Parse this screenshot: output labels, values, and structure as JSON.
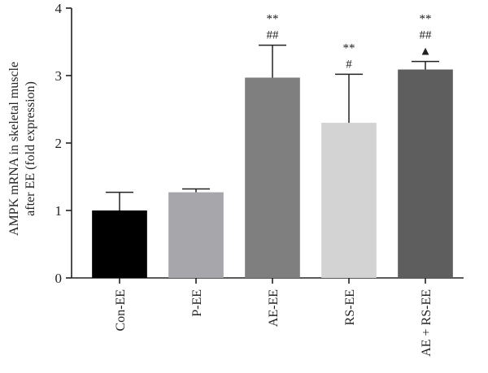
{
  "chart_data": {
    "type": "bar",
    "ylabel_lines": [
      "AMPK mRNA in skeletal muscle",
      "after EE (fold expression)"
    ],
    "xlabel": "",
    "ylim": [
      0,
      4
    ],
    "yticks": [
      0,
      1,
      2,
      3,
      4
    ],
    "categories": [
      "Con-EE",
      "P-EE",
      "AE-EE",
      "RS-EE",
      "AE + RS-EE"
    ],
    "values": [
      1.0,
      1.27,
      2.97,
      2.3,
      3.09
    ],
    "errors": [
      0.27,
      0.05,
      0.48,
      0.72,
      0.12
    ],
    "colors": [
      "#000000",
      "#a6a6ab",
      "#7f7f7f",
      "#d3d3d3",
      "#5e5e5e"
    ],
    "annotations": [
      [],
      [],
      [
        "**",
        "##"
      ],
      [
        "**",
        "#"
      ],
      [
        "**",
        "##",
        "▲"
      ]
    ],
    "grid": false,
    "legend": "none"
  }
}
